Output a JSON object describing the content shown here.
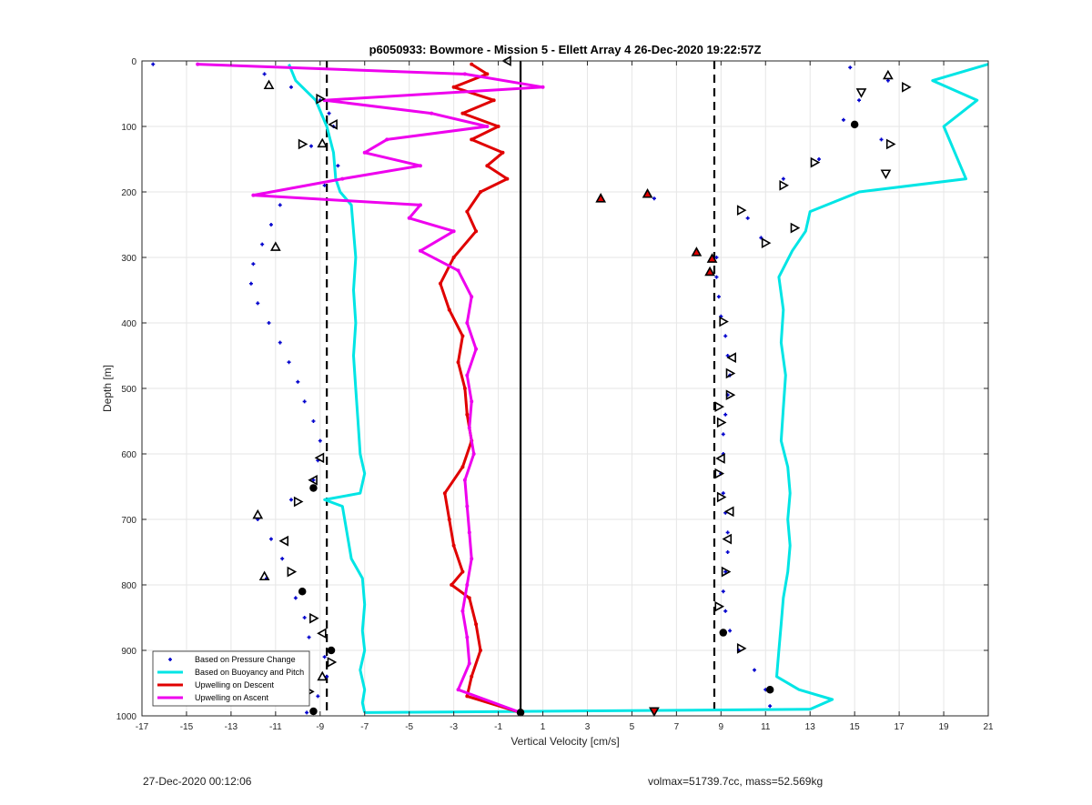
{
  "footer": {
    "left": "27-Dec-2020 00:12:06",
    "right": "volmax=51739.7cc, mass=52.569kg"
  },
  "chart_data": {
    "type": "scatter",
    "title": "p6050933: Bowmore - Mission 5 - Ellett Array 4 26-Dec-2020 19:22:57Z",
    "xlabel": "Vertical Velocity [cm/s]",
    "ylabel": "Depth [m]",
    "xlim": [
      -17,
      21
    ],
    "ylim": [
      1000,
      0
    ],
    "y_reversed": true,
    "xticks": [
      -17,
      -15,
      -13,
      -11,
      -9,
      -7,
      -5,
      -3,
      -1,
      1,
      3,
      5,
      7,
      9,
      11,
      13,
      15,
      17,
      19,
      21
    ],
    "yticks": [
      0,
      100,
      200,
      300,
      400,
      500,
      600,
      700,
      800,
      900,
      1000
    ],
    "grid": true,
    "legend_position": "bottom-left",
    "colors": {
      "pressure": "#0000cc",
      "buoyancy": "#00e5e5",
      "descent": "#e00000",
      "ascent": "#ee00ee",
      "reference": "#000000"
    },
    "reference_lines": [
      {
        "x": -8.7,
        "style": "dashed"
      },
      {
        "x": 0,
        "style": "solid"
      },
      {
        "x": 8.7,
        "style": "dashed"
      }
    ],
    "series": [
      {
        "name": "Based on Pressure Change",
        "style": "points",
        "depth": [
          5,
          20,
          40,
          60,
          80,
          100,
          130,
          160,
          190,
          220,
          250,
          280,
          310,
          340,
          370,
          400,
          430,
          460,
          490,
          520,
          550,
          580,
          610,
          640,
          670,
          700,
          730,
          760,
          790,
          820,
          850,
          880,
          910,
          940,
          970,
          995
        ],
        "x": [
          -16.5,
          -11.5,
          -10.3,
          -9.0,
          -8.6,
          -8.4,
          -9.4,
          -8.2,
          -8.8,
          -10.8,
          -11.2,
          -11.6,
          -12.0,
          -12.1,
          -11.8,
          -11.3,
          -10.8,
          -10.4,
          -10.0,
          -9.7,
          -9.3,
          -9.0,
          -9.1,
          -9.3,
          -10.3,
          -11.8,
          -11.2,
          -10.7,
          -11.4,
          -10.1,
          -9.7,
          -9.5,
          -8.8,
          -8.7,
          -9.1,
          -9.6
        ]
      },
      {
        "name": "Based on Pressure Change",
        "style": "points",
        "legend": false,
        "depth": [
          10,
          30,
          60,
          90,
          120,
          150,
          180,
          210,
          240,
          270,
          300,
          330,
          360,
          390,
          420,
          450,
          480,
          510,
          540,
          570,
          600,
          630,
          660,
          690,
          720,
          750,
          780,
          810,
          840,
          870,
          900,
          930,
          960,
          985
        ],
        "x": [
          14.8,
          16.5,
          15.2,
          14.5,
          16.2,
          13.4,
          11.8,
          6.0,
          10.2,
          10.8,
          8.8,
          8.8,
          8.9,
          9.0,
          9.2,
          9.3,
          9.4,
          9.3,
          9.2,
          9.1,
          9.1,
          9.0,
          9.1,
          9.2,
          9.3,
          9.3,
          9.2,
          9.1,
          9.2,
          9.4,
          9.8,
          10.5,
          11.0,
          11.2
        ]
      },
      {
        "name": "Based on Buoyancy and Pitch",
        "style": "line",
        "depth": [
          5,
          30,
          60,
          100,
          140,
          180,
          200,
          220,
          260,
          300,
          350,
          400,
          450,
          500,
          550,
          600,
          630,
          660,
          670,
          680,
          720,
          760,
          790,
          830,
          870,
          900,
          930,
          960,
          980,
          995
        ],
        "x": [
          -10.4,
          -10.1,
          -9.2,
          -8.7,
          -8.4,
          -8.3,
          -8.1,
          -7.6,
          -7.5,
          -7.4,
          -7.5,
          -7.4,
          -7.5,
          -7.4,
          -7.3,
          -7.2,
          -7.0,
          -7.2,
          -8.8,
          -8.0,
          -7.8,
          -7.6,
          -7.1,
          -7.0,
          -7.1,
          -7.0,
          -7.2,
          -7.0,
          -7.1,
          -7.0
        ]
      },
      {
        "name": "Based on Buoyancy and Pitch",
        "style": "line",
        "legend": false,
        "depth": [
          5,
          30,
          60,
          100,
          140,
          180,
          200,
          230,
          260,
          290,
          330,
          380,
          430,
          480,
          530,
          580,
          620,
          660,
          700,
          740,
          780,
          820,
          860,
          900,
          940,
          960,
          975,
          990,
          995
        ],
        "x": [
          21.0,
          18.5,
          20.5,
          19.0,
          19.5,
          20.0,
          15.2,
          13.0,
          12.8,
          12.2,
          11.6,
          11.8,
          11.7,
          11.9,
          11.8,
          11.7,
          12.0,
          12.1,
          12.0,
          12.1,
          12.0,
          11.8,
          11.7,
          11.6,
          11.5,
          12.5,
          14.0,
          13.0,
          -7.0
        ]
      },
      {
        "name": "Upwelling on Descent",
        "style": "line-markers",
        "depth": [
          5,
          20,
          40,
          60,
          80,
          100,
          120,
          140,
          160,
          180,
          200,
          230,
          260,
          300,
          340,
          380,
          420,
          460,
          500,
          540,
          580,
          620,
          660,
          700,
          740,
          780,
          800,
          820,
          860,
          900,
          940,
          970,
          995
        ],
        "x": [
          -2.2,
          -1.5,
          -3.0,
          -1.2,
          -2.6,
          -1.0,
          -2.2,
          -0.8,
          -1.5,
          -0.6,
          -1.8,
          -2.4,
          -2.0,
          -3.0,
          -3.6,
          -3.2,
          -2.6,
          -2.8,
          -2.5,
          -2.4,
          -2.2,
          -2.6,
          -3.4,
          -3.2,
          -3.0,
          -2.6,
          -3.1,
          -2.3,
          -2.0,
          -1.8,
          -2.2,
          -2.4,
          0.0
        ]
      },
      {
        "name": "Upwelling on Ascent",
        "style": "line-markers",
        "depth": [
          5,
          20,
          40,
          60,
          80,
          100,
          120,
          140,
          160,
          180,
          205,
          220,
          240,
          260,
          290,
          320,
          360,
          400,
          440,
          480,
          520,
          560,
          600,
          640,
          680,
          720,
          760,
          800,
          840,
          880,
          920,
          960,
          995
        ],
        "x": [
          -14.5,
          -2.5,
          1.0,
          -8.8,
          -4.0,
          -1.5,
          -6.0,
          -7.0,
          -4.5,
          -8.0,
          -12.0,
          -4.5,
          -5.0,
          -3.0,
          -4.5,
          -2.8,
          -2.2,
          -2.4,
          -2.0,
          -2.4,
          -2.2,
          -2.3,
          -2.1,
          -2.5,
          -2.4,
          -2.3,
          -2.2,
          -2.4,
          -2.6,
          -2.4,
          -2.3,
          -2.8,
          0.0
        ]
      }
    ],
    "markers": [
      {
        "x": -11.3,
        "depth": 37,
        "shape": "triangle-up"
      },
      {
        "x": -9.0,
        "depth": 58,
        "shape": "triangle-right"
      },
      {
        "x": -8.4,
        "depth": 97,
        "shape": "triangle-left"
      },
      {
        "x": -8.9,
        "depth": 126,
        "shape": "triangle-up"
      },
      {
        "x": -9.8,
        "depth": 127,
        "shape": "triangle-right"
      },
      {
        "x": -0.6,
        "depth": 0,
        "shape": "triangle-left"
      },
      {
        "x": 16.5,
        "depth": 22,
        "shape": "triangle-up"
      },
      {
        "x": 17.3,
        "depth": 40,
        "shape": "triangle-right"
      },
      {
        "x": 15.3,
        "depth": 48,
        "shape": "triangle-down"
      },
      {
        "x": 15.0,
        "depth": 97,
        "shape": "circle"
      },
      {
        "x": 16.6,
        "depth": 127,
        "shape": "triangle-right"
      },
      {
        "x": 13.2,
        "depth": 155,
        "shape": "triangle-right"
      },
      {
        "x": 16.4,
        "depth": 172,
        "shape": "triangle-down"
      },
      {
        "x": 11.8,
        "depth": 190,
        "shape": "triangle-right"
      },
      {
        "x": 3.6,
        "depth": 210,
        "shape": "triangle-up-filled"
      },
      {
        "x": 5.7,
        "depth": 203,
        "shape": "triangle-up-filled"
      },
      {
        "x": 9.9,
        "depth": 228,
        "shape": "triangle-right"
      },
      {
        "x": 12.3,
        "depth": 255,
        "shape": "triangle-right"
      },
      {
        "x": 11.0,
        "depth": 278,
        "shape": "triangle-right"
      },
      {
        "x": -11.0,
        "depth": 284,
        "shape": "triangle-up"
      },
      {
        "x": 7.9,
        "depth": 292,
        "shape": "triangle-up-filled"
      },
      {
        "x": 8.6,
        "depth": 302,
        "shape": "triangle-up-filled"
      },
      {
        "x": 8.5,
        "depth": 322,
        "shape": "triangle-up-filled"
      },
      {
        "x": 9.1,
        "depth": 398,
        "shape": "triangle-right"
      },
      {
        "x": 9.5,
        "depth": 453,
        "shape": "triangle-left"
      },
      {
        "x": 9.4,
        "depth": 477,
        "shape": "triangle-right"
      },
      {
        "x": 9.4,
        "depth": 510,
        "shape": "triangle-right"
      },
      {
        "x": 8.9,
        "depth": 528,
        "shape": "triangle-right"
      },
      {
        "x": 9.0,
        "depth": 552,
        "shape": "triangle-right"
      },
      {
        "x": 9.0,
        "depth": 607,
        "shape": "triangle-left"
      },
      {
        "x": 8.9,
        "depth": 630,
        "shape": "triangle-right"
      },
      {
        "x": 9.0,
        "depth": 666,
        "shape": "triangle-right"
      },
      {
        "x": 9.4,
        "depth": 688,
        "shape": "triangle-left"
      },
      {
        "x": 9.3,
        "depth": 730,
        "shape": "triangle-left"
      },
      {
        "x": 9.2,
        "depth": 780,
        "shape": "triangle-right"
      },
      {
        "x": 8.9,
        "depth": 833,
        "shape": "triangle-right"
      },
      {
        "x": 9.1,
        "depth": 873,
        "shape": "circle"
      },
      {
        "x": 9.9,
        "depth": 897,
        "shape": "triangle-right"
      },
      {
        "x": 11.2,
        "depth": 960,
        "shape": "circle"
      },
      {
        "x": -9.0,
        "depth": 606,
        "shape": "triangle-left"
      },
      {
        "x": -9.3,
        "depth": 640,
        "shape": "triangle-left"
      },
      {
        "x": -9.3,
        "depth": 652,
        "shape": "circle"
      },
      {
        "x": -10.0,
        "depth": 673,
        "shape": "triangle-right"
      },
      {
        "x": -11.8,
        "depth": 693,
        "shape": "triangle-up"
      },
      {
        "x": -10.6,
        "depth": 733,
        "shape": "triangle-left"
      },
      {
        "x": -10.3,
        "depth": 780,
        "shape": "triangle-right"
      },
      {
        "x": -11.5,
        "depth": 787,
        "shape": "triangle-up"
      },
      {
        "x": -9.8,
        "depth": 810,
        "shape": "circle"
      },
      {
        "x": -9.3,
        "depth": 851,
        "shape": "triangle-right"
      },
      {
        "x": -8.9,
        "depth": 874,
        "shape": "triangle-left"
      },
      {
        "x": -8.5,
        "depth": 900,
        "shape": "circle"
      },
      {
        "x": -8.5,
        "depth": 918,
        "shape": "triangle-right"
      },
      {
        "x": -8.9,
        "depth": 940,
        "shape": "triangle-up"
      },
      {
        "x": -9.5,
        "depth": 963,
        "shape": "triangle-right"
      },
      {
        "x": -9.3,
        "depth": 993,
        "shape": "circle"
      },
      {
        "x": 0.0,
        "depth": 995,
        "shape": "circle"
      },
      {
        "x": 6.0,
        "depth": 993,
        "shape": "triangle-down-filled"
      }
    ]
  }
}
